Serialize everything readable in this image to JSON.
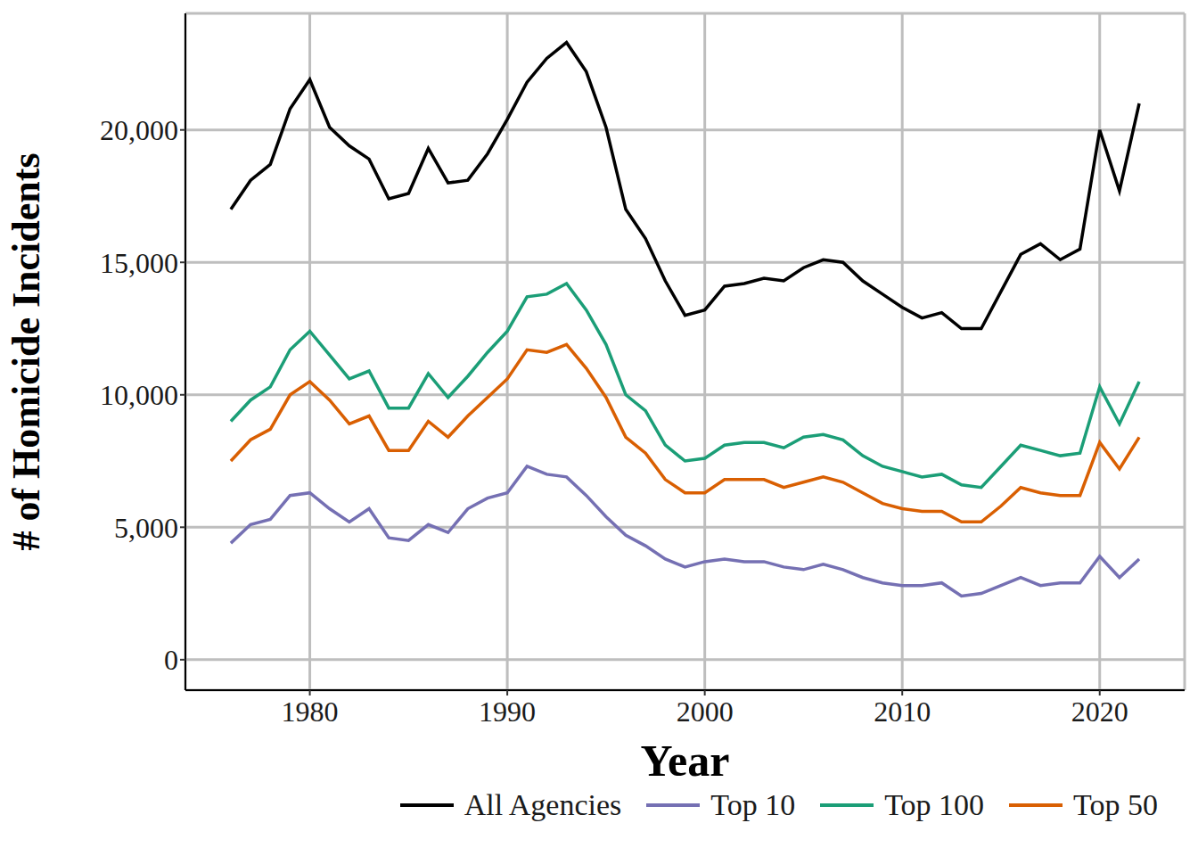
{
  "chart_data": {
    "type": "line",
    "x_label": "Year",
    "y_label": "# of Homicide Incidents",
    "x": [
      1976,
      1977,
      1978,
      1979,
      1980,
      1981,
      1982,
      1983,
      1984,
      1985,
      1986,
      1987,
      1988,
      1989,
      1990,
      1991,
      1992,
      1993,
      1994,
      1995,
      1996,
      1997,
      1998,
      1999,
      2000,
      2001,
      2002,
      2003,
      2004,
      2005,
      2006,
      2007,
      2008,
      2009,
      2010,
      2011,
      2012,
      2013,
      2014,
      2015,
      2016,
      2017,
      2018,
      2019,
      2020,
      2021,
      2022
    ],
    "series": [
      {
        "name": "All Agencies",
        "color": "#000000",
        "values": [
          17000,
          18100,
          18700,
          20800,
          21900,
          20100,
          19400,
          18900,
          17400,
          17600,
          19300,
          18000,
          18100,
          19100,
          20400,
          21800,
          22700,
          23300,
          22200,
          20100,
          17000,
          15900,
          14300,
          13000,
          13200,
          14100,
          14200,
          14400,
          14300,
          14800,
          15100,
          15000,
          14300,
          13800,
          13300,
          12900,
          13100,
          12500,
          12500,
          13900,
          15300,
          15700,
          15100,
          15500,
          20000,
          17700,
          21000
        ]
      },
      {
        "name": "Top 10",
        "color": "#7570b3",
        "values": [
          4400,
          5100,
          5300,
          6200,
          6300,
          5700,
          5200,
          5700,
          4600,
          4500,
          5100,
          4800,
          5700,
          6100,
          6300,
          7300,
          7000,
          6900,
          6200,
          5400,
          4700,
          4300,
          3800,
          3500,
          3700,
          3800,
          3700,
          3700,
          3500,
          3400,
          3600,
          3400,
          3100,
          2900,
          2800,
          2800,
          2900,
          2400,
          2500,
          2800,
          3100,
          2800,
          2900,
          2900,
          3900,
          3100,
          3800
        ]
      },
      {
        "name": "Top 100",
        "color": "#1b9e77",
        "values": [
          9000,
          9800,
          10300,
          11700,
          12400,
          11500,
          10600,
          10900,
          9500,
          9500,
          10800,
          9900,
          10700,
          11600,
          12400,
          13700,
          13800,
          14200,
          13200,
          11900,
          10000,
          9400,
          8100,
          7500,
          7600,
          8100,
          8200,
          8200,
          8000,
          8400,
          8500,
          8300,
          7700,
          7300,
          7100,
          6900,
          7000,
          6600,
          6500,
          7300,
          8100,
          7900,
          7700,
          7800,
          10300,
          8900,
          10500
        ]
      },
      {
        "name": "Top 50",
        "color": "#d95f02",
        "values": [
          7500,
          8300,
          8700,
          10000,
          10500,
          9800,
          8900,
          9200,
          7900,
          7900,
          9000,
          8400,
          9200,
          9900,
          10600,
          11700,
          11600,
          11900,
          11000,
          9900,
          8400,
          7800,
          6800,
          6300,
          6300,
          6800,
          6800,
          6800,
          6500,
          6700,
          6900,
          6700,
          6300,
          5900,
          5700,
          5600,
          5600,
          5200,
          5200,
          5800,
          6500,
          6300,
          6200,
          6200,
          8200,
          7200,
          8400
        ]
      }
    ],
    "xlim": [
      1973.7,
      2024.3
    ],
    "xticks": [
      1980,
      1990,
      2000,
      2010,
      2020
    ],
    "ylim": [
      -1150,
      24400
    ],
    "yticks": [
      0,
      {
        "value": 5000,
        "label": "5,000"
      },
      {
        "value": 10000,
        "label": "10,000"
      },
      {
        "value": 15000,
        "label": "15,000"
      },
      {
        "value": 20000,
        "label": "20,000"
      }
    ],
    "grid": true,
    "legend": "bottom"
  }
}
